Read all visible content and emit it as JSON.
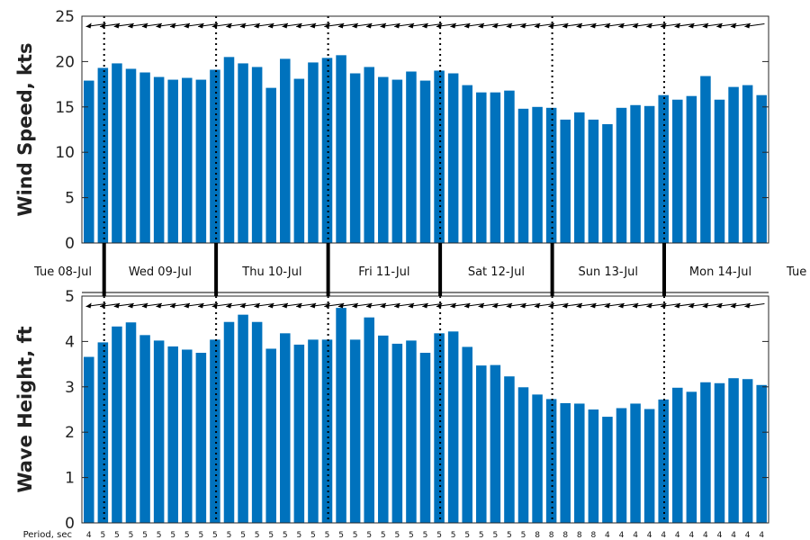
{
  "chart_data": [
    {
      "type": "bar",
      "ylabel": "Wind Speed, kts",
      "ylim": [
        0,
        25
      ],
      "yticks": [
        "0",
        "5",
        "10",
        "15",
        "20",
        "25"
      ],
      "values": [
        17.9,
        19.3,
        19.8,
        19.2,
        18.8,
        18.3,
        18.0,
        18.2,
        18.0,
        19.1,
        20.5,
        19.8,
        19.4,
        17.1,
        20.3,
        18.1,
        19.9,
        20.4,
        20.7,
        18.7,
        19.4,
        18.3,
        18.0,
        18.9,
        17.9,
        19.0,
        18.7,
        17.4,
        16.6,
        16.6,
        16.8,
        14.8,
        15.0,
        14.9,
        13.6,
        14.4,
        13.6,
        13.1,
        14.9,
        15.2,
        15.1,
        16.3,
        15.8,
        16.2,
        18.4,
        15.8,
        17.2,
        17.4,
        16.3
      ],
      "direction_arrows": "pointing left (easterly flow)"
    },
    {
      "type": "bar",
      "ylabel": "Wave Height, ft",
      "ylim": [
        0,
        5
      ],
      "yticks": [
        "0",
        "1",
        "2",
        "3",
        "4",
        "5"
      ],
      "values": [
        3.66,
        3.98,
        4.33,
        4.42,
        4.14,
        4.02,
        3.89,
        3.82,
        3.75,
        4.04,
        4.43,
        4.59,
        4.43,
        3.84,
        4.18,
        3.93,
        4.04,
        4.04,
        4.74,
        4.04,
        4.53,
        4.13,
        3.95,
        4.02,
        3.75,
        4.18,
        4.22,
        3.88,
        3.47,
        3.48,
        3.23,
        2.99,
        2.83,
        2.73,
        2.64,
        2.63,
        2.5,
        2.34,
        2.53,
        2.63,
        2.51,
        2.72,
        2.98,
        2.89,
        3.1,
        3.08,
        3.19,
        3.17,
        3.04
      ],
      "direction_arrows": "pointing left (easterly swell)"
    }
  ],
  "days": [
    "Tue 08-Jul",
    "Wed 09-Jul",
    "Thu 10-Jul",
    "Fri 11-Jul",
    "Sat 12-Jul",
    "Sun 13-Jul",
    "Mon 14-Jul",
    "Tue"
  ],
  "period_label": "Period, sec",
  "periods": [
    "4",
    "5",
    "5",
    "5",
    "5",
    "5",
    "5",
    "5",
    "5",
    "5",
    "5",
    "5",
    "5",
    "5",
    "5",
    "5",
    "5",
    "5",
    "5",
    "5",
    "5",
    "5",
    "5",
    "5",
    "5",
    "5",
    "5",
    "5",
    "5",
    "5",
    "5",
    "5",
    "8",
    "8",
    "8",
    "8",
    "8",
    "4",
    "4",
    "4",
    "4",
    "4",
    "4",
    "4",
    "4",
    "4",
    "4",
    "4",
    "4"
  ],
  "colors": {
    "bar": "#0072BD",
    "axis": "#262626",
    "background": "#ffffff"
  }
}
